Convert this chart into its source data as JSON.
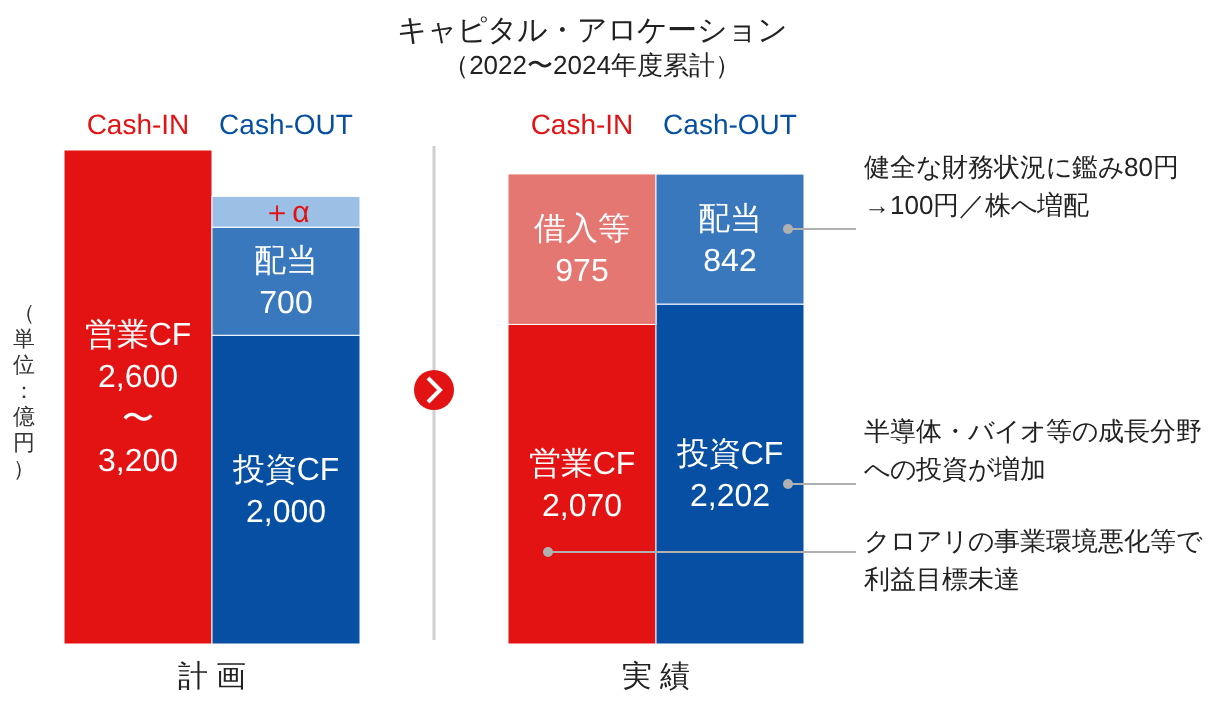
{
  "chart_data": {
    "type": "bar",
    "stacked": true,
    "title": "キャピタル・アロケーション",
    "subtitle": "（2022〜2024年度累計）",
    "ylabel": "（単位：億円）",
    "categories": [
      "Cash-IN",
      "Cash-OUT",
      "Cash-IN",
      "Cash-OUT"
    ],
    "series": [
      {
        "colors": [
          "#e31313",
          "#064fa2",
          "#e31313",
          "#064fa2"
        ],
        "values": [
          3200,
          2000,
          2070,
          2202
        ],
        "value_labels": [
          "営業CF\n2,600\n〜\n3,200",
          "投資CF\n2,000",
          "営業CF\n2,070",
          "投資CF\n2,202"
        ]
      },
      {
        "colors": [
          null,
          "#3a78be",
          "#e57772",
          "#3a78be"
        ],
        "values": [
          null,
          700,
          975,
          842
        ],
        "value_labels": [
          null,
          "配当\n700",
          "借入等\n975",
          "配当\n842"
        ]
      },
      {
        "colors": [
          null,
          "#9cbfe6",
          null,
          null
        ],
        "values": [
          null,
          200,
          null,
          null
        ],
        "value_labels": [
          null,
          "＋α",
          null,
          null
        ]
      }
    ],
    "annotations": [
      "計 画",
      "実 績",
      "健全な財務状況に鑑み80円→100円／株へ増配",
      "半導体・バイオ等の成長分野への投資が増加",
      "クロアリの事業環境悪化等で利益目標未達"
    ]
  }
}
